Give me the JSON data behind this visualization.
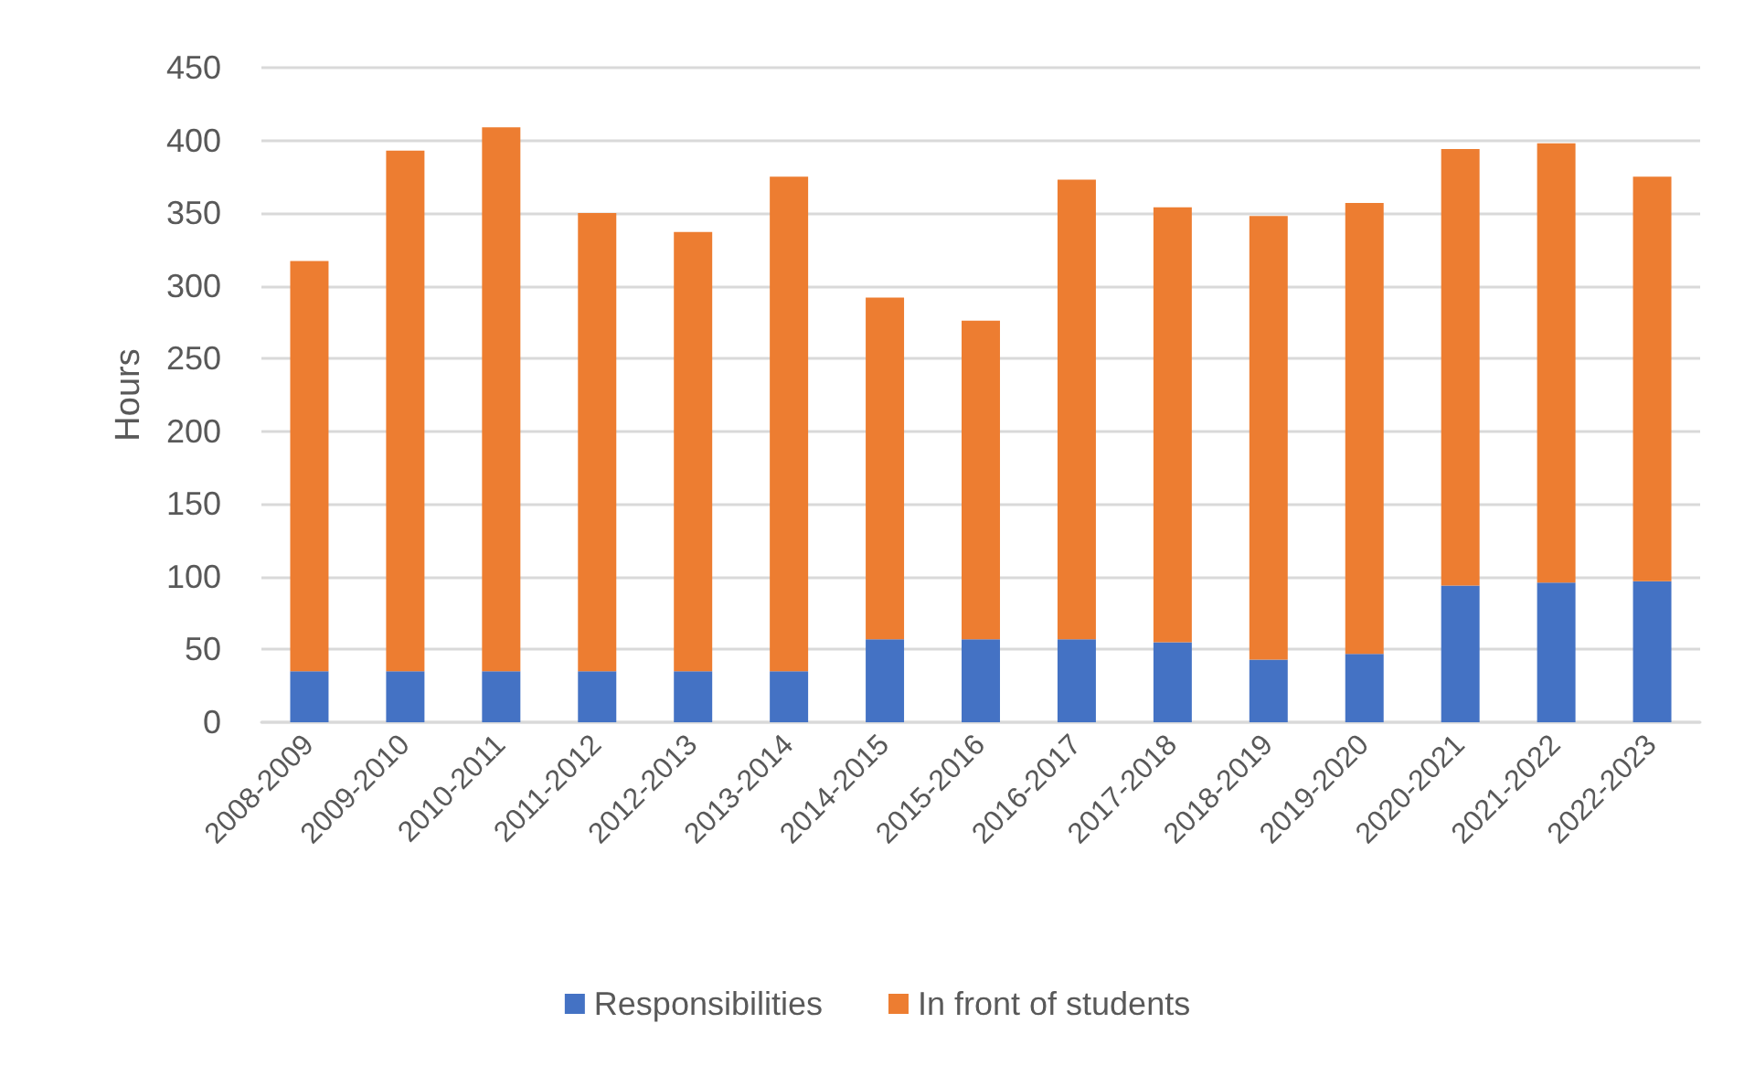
{
  "chart_data": {
    "type": "bar",
    "stacked": true,
    "ylabel": "Hours",
    "categories": [
      "2008-2009",
      "2009-2010",
      "2010-2011",
      "2011-2012",
      "2012-2013",
      "2013-2014",
      "2014-2015",
      "2015-2016",
      "2016-2017",
      "2017-2018",
      "2018-2019",
      "2019-2020",
      "2020-2021",
      "2021-2022",
      "2022-2023"
    ],
    "series": [
      {
        "name": "Responsibilities",
        "color": "#4472c4",
        "values": [
          35,
          35,
          35,
          35,
          35,
          35,
          57,
          57,
          57,
          55,
          43,
          47,
          94,
          96,
          97
        ]
      },
      {
        "name": "In front of students",
        "color": "#ed7d31",
        "values": [
          282,
          358,
          374,
          315,
          302,
          340,
          235,
          219,
          316,
          299,
          305,
          310,
          300,
          302,
          278
        ]
      }
    ],
    "ylim": [
      0,
      450
    ],
    "yticks": [
      0,
      50,
      100,
      150,
      200,
      250,
      300,
      350,
      400,
      450
    ],
    "grid": "y",
    "legend": "bottom"
  }
}
